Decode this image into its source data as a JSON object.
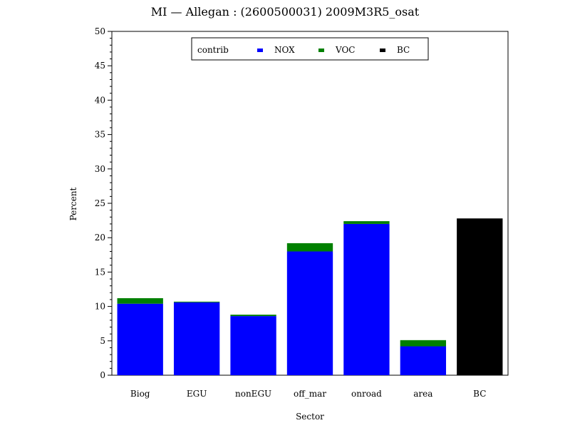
{
  "chart_data": {
    "type": "bar",
    "stacked": true,
    "title": "MI — Allegan : (2600500031) 2009M3R5_osat",
    "xlabel": "Sector",
    "ylabel": "Percent",
    "ylim": [
      0,
      50
    ],
    "yticks": [
      0,
      5,
      10,
      15,
      20,
      25,
      30,
      35,
      40,
      45,
      50
    ],
    "categories": [
      "Biog",
      "EGU",
      "nonEGU",
      "off_mar",
      "onroad",
      "area",
      "BC"
    ],
    "series": [
      {
        "name": "NOX",
        "color": "#0000ff",
        "values": [
          10.4,
          10.6,
          8.6,
          18.0,
          22.0,
          4.2,
          0
        ]
      },
      {
        "name": "VOC",
        "color": "#008000",
        "values": [
          0.8,
          0.1,
          0.2,
          1.2,
          0.4,
          0.9,
          0
        ]
      },
      {
        "name": "BC",
        "color": "#000000",
        "values": [
          0,
          0,
          0,
          0,
          0,
          0,
          22.8
        ]
      }
    ],
    "legend": {
      "title": "contrib",
      "placement": "top-center"
    },
    "grid": false
  }
}
